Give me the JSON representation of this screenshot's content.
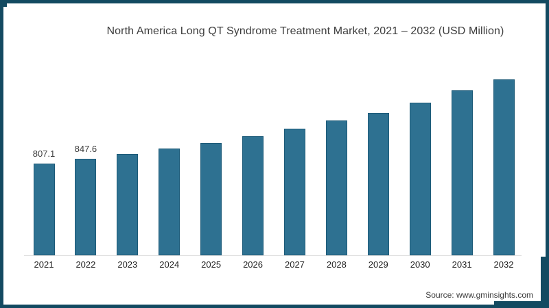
{
  "title": "North America Long QT Syndrome Treatment Market, 2021 – 2032 (USD Million)",
  "source": "Source: www.gminsights.com",
  "frame": {
    "border_color": "#134a61",
    "background": "#ffffff"
  },
  "chart_data": {
    "type": "bar",
    "title": "North America Long QT Syndrome Treatment Market, 2021 – 2032 (USD Million)",
    "unit": "USD Million",
    "categories": [
      "2021",
      "2022",
      "2023",
      "2024",
      "2025",
      "2026",
      "2027",
      "2028",
      "2029",
      "2030",
      "2031",
      "2032"
    ],
    "values": [
      807.1,
      847.6,
      890,
      940,
      990,
      1050,
      1115,
      1185,
      1255,
      1345,
      1450,
      1550
    ],
    "value_labels": [
      "807.1",
      "847.6",
      "",
      "",
      "",
      "",
      "",
      "",
      "",
      "",
      "",
      ""
    ],
    "xlabel": "",
    "ylabel": "",
    "ylim": [
      0,
      1600
    ],
    "grid": false,
    "legend": false,
    "bar_color": "#2e7191",
    "bar_edge_color": "#1c5a78"
  }
}
